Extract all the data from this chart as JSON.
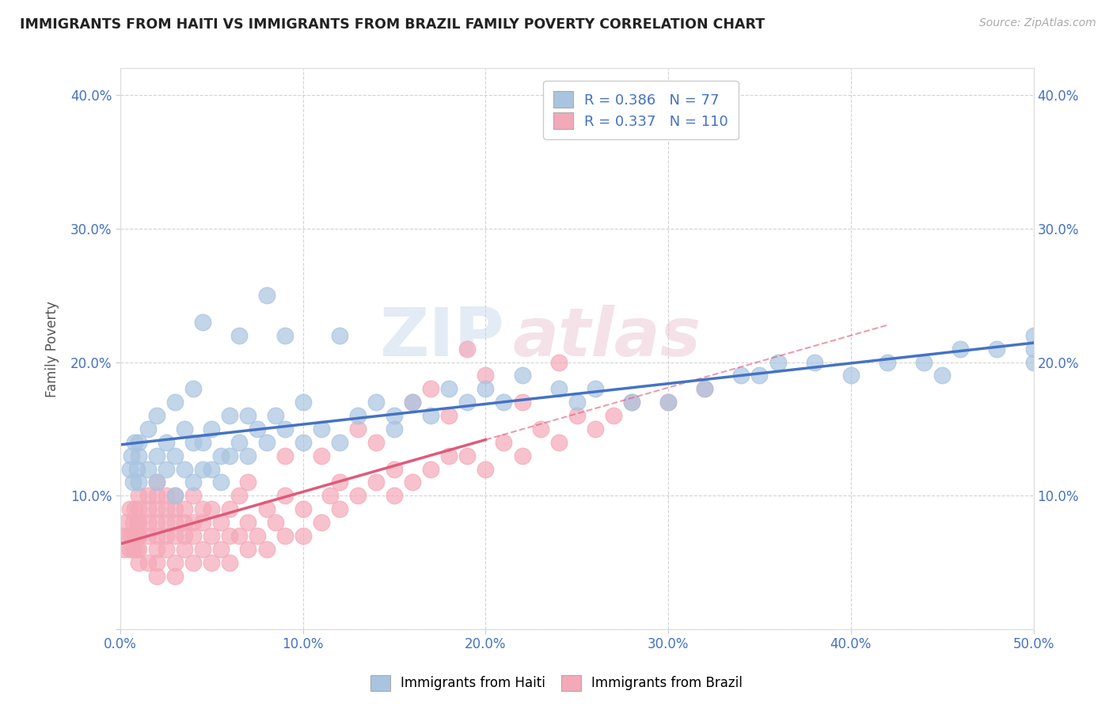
{
  "title": "IMMIGRANTS FROM HAITI VS IMMIGRANTS FROM BRAZIL FAMILY POVERTY CORRELATION CHART",
  "source_text": "Source: ZipAtlas.com",
  "ylabel": "Family Poverty",
  "xlim": [
    0.0,
    0.5
  ],
  "ylim": [
    0.0,
    0.42
  ],
  "xtick_labels": [
    "0.0%",
    "10.0%",
    "20.0%",
    "30.0%",
    "40.0%",
    "50.0%"
  ],
  "xtick_vals": [
    0.0,
    0.1,
    0.2,
    0.3,
    0.4,
    0.5
  ],
  "ytick_labels": [
    "",
    "10.0%",
    "20.0%",
    "30.0%",
    "40.0%"
  ],
  "ytick_vals": [
    0.0,
    0.1,
    0.2,
    0.3,
    0.4
  ],
  "haiti_color": "#a8c4e0",
  "brazil_color": "#f4a9b8",
  "haiti_line_color": "#4472c4",
  "brazil_line_color": "#e05a7a",
  "haiti_R": 0.386,
  "haiti_N": 77,
  "brazil_R": 0.337,
  "brazil_N": 110,
  "watermark_zip": "ZIP",
  "watermark_atlas": "atlas",
  "background_color": "#ffffff",
  "haiti_scatter_x": [
    0.005,
    0.006,
    0.007,
    0.008,
    0.009,
    0.01,
    0.01,
    0.01,
    0.015,
    0.015,
    0.02,
    0.02,
    0.02,
    0.025,
    0.025,
    0.03,
    0.03,
    0.03,
    0.035,
    0.035,
    0.04,
    0.04,
    0.04,
    0.045,
    0.045,
    0.045,
    0.05,
    0.05,
    0.055,
    0.055,
    0.06,
    0.06,
    0.065,
    0.065,
    0.07,
    0.07,
    0.075,
    0.08,
    0.08,
    0.085,
    0.09,
    0.09,
    0.1,
    0.1,
    0.11,
    0.12,
    0.12,
    0.13,
    0.14,
    0.15,
    0.16,
    0.17,
    0.18,
    0.19,
    0.2,
    0.21,
    0.22,
    0.24,
    0.26,
    0.28,
    0.3,
    0.32,
    0.34,
    0.36,
    0.38,
    0.4,
    0.42,
    0.44,
    0.46,
    0.48,
    0.5,
    0.5,
    0.5,
    0.45,
    0.35,
    0.25,
    0.15
  ],
  "haiti_scatter_y": [
    0.12,
    0.13,
    0.11,
    0.14,
    0.12,
    0.11,
    0.13,
    0.14,
    0.12,
    0.15,
    0.11,
    0.13,
    0.16,
    0.12,
    0.14,
    0.1,
    0.13,
    0.17,
    0.12,
    0.15,
    0.11,
    0.14,
    0.18,
    0.12,
    0.14,
    0.23,
    0.12,
    0.15,
    0.11,
    0.13,
    0.13,
    0.16,
    0.14,
    0.22,
    0.13,
    0.16,
    0.15,
    0.14,
    0.25,
    0.16,
    0.15,
    0.22,
    0.14,
    0.17,
    0.15,
    0.14,
    0.22,
    0.16,
    0.17,
    0.16,
    0.17,
    0.16,
    0.18,
    0.17,
    0.18,
    0.17,
    0.19,
    0.18,
    0.18,
    0.17,
    0.17,
    0.18,
    0.19,
    0.2,
    0.2,
    0.19,
    0.2,
    0.2,
    0.21,
    0.21,
    0.22,
    0.2,
    0.21,
    0.19,
    0.19,
    0.17,
    0.15
  ],
  "brazil_scatter_x": [
    0.001,
    0.002,
    0.003,
    0.004,
    0.005,
    0.005,
    0.006,
    0.007,
    0.007,
    0.008,
    0.008,
    0.009,
    0.009,
    0.01,
    0.01,
    0.01,
    0.01,
    0.01,
    0.01,
    0.01,
    0.015,
    0.015,
    0.015,
    0.015,
    0.015,
    0.02,
    0.02,
    0.02,
    0.02,
    0.02,
    0.02,
    0.02,
    0.02,
    0.025,
    0.025,
    0.025,
    0.025,
    0.025,
    0.03,
    0.03,
    0.03,
    0.03,
    0.03,
    0.03,
    0.035,
    0.035,
    0.035,
    0.035,
    0.04,
    0.04,
    0.04,
    0.04,
    0.045,
    0.045,
    0.045,
    0.05,
    0.05,
    0.05,
    0.055,
    0.055,
    0.06,
    0.06,
    0.06,
    0.065,
    0.065,
    0.07,
    0.07,
    0.075,
    0.08,
    0.08,
    0.085,
    0.09,
    0.09,
    0.1,
    0.1,
    0.11,
    0.115,
    0.12,
    0.12,
    0.13,
    0.14,
    0.15,
    0.15,
    0.16,
    0.17,
    0.18,
    0.19,
    0.2,
    0.21,
    0.22,
    0.23,
    0.24,
    0.25,
    0.26,
    0.27,
    0.28,
    0.3,
    0.32,
    0.18,
    0.2,
    0.14,
    0.16,
    0.22,
    0.24,
    0.11,
    0.13,
    0.17,
    0.19,
    0.07,
    0.09
  ],
  "brazil_scatter_y": [
    0.07,
    0.06,
    0.08,
    0.07,
    0.06,
    0.09,
    0.07,
    0.06,
    0.08,
    0.07,
    0.09,
    0.06,
    0.08,
    0.05,
    0.07,
    0.08,
    0.09,
    0.1,
    0.06,
    0.07,
    0.05,
    0.07,
    0.08,
    0.09,
    0.1,
    0.04,
    0.06,
    0.07,
    0.08,
    0.09,
    0.1,
    0.11,
    0.05,
    0.06,
    0.07,
    0.08,
    0.09,
    0.1,
    0.04,
    0.05,
    0.07,
    0.08,
    0.09,
    0.1,
    0.06,
    0.07,
    0.08,
    0.09,
    0.05,
    0.07,
    0.08,
    0.1,
    0.06,
    0.08,
    0.09,
    0.05,
    0.07,
    0.09,
    0.06,
    0.08,
    0.05,
    0.07,
    0.09,
    0.07,
    0.1,
    0.06,
    0.08,
    0.07,
    0.06,
    0.09,
    0.08,
    0.07,
    0.1,
    0.07,
    0.09,
    0.08,
    0.1,
    0.09,
    0.11,
    0.1,
    0.11,
    0.1,
    0.12,
    0.11,
    0.12,
    0.13,
    0.13,
    0.12,
    0.14,
    0.13,
    0.15,
    0.14,
    0.16,
    0.15,
    0.16,
    0.17,
    0.17,
    0.18,
    0.16,
    0.19,
    0.14,
    0.17,
    0.17,
    0.2,
    0.13,
    0.15,
    0.18,
    0.21,
    0.11,
    0.13
  ]
}
